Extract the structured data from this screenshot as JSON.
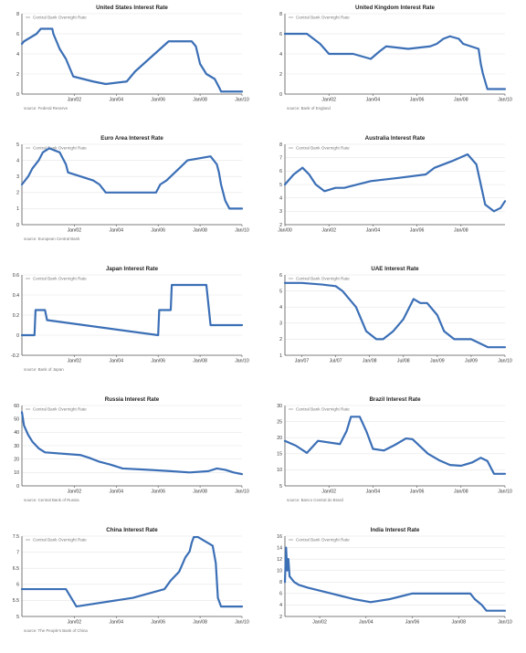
{
  "legend_label": "Central Bank Overnight Rate",
  "line_color": "#3b6fb6",
  "chart_data": [
    {
      "type": "line",
      "title": "United States Interest Rate",
      "source": "source: Federal Reserve",
      "xlim": [
        1999.5,
        2010.0
      ],
      "ylim": [
        0,
        8
      ],
      "yticks": [
        0,
        2,
        4,
        6,
        8
      ],
      "yticklabels": [
        "0",
        "2",
        "4",
        "6",
        "8"
      ],
      "xticks": [
        2002.0,
        2004.0,
        2006.0,
        2008.0,
        2010.0
      ],
      "xticklabels": [
        "Jan/02",
        "Jan/04",
        "Jan/06",
        "Jan/08",
        "Jan/10"
      ],
      "series": [
        {
          "x": [
            1999.5,
            1999.6,
            1999.8,
            2000.0,
            2000.2,
            2000.4,
            2000.95,
            2001.0,
            2001.3,
            2001.6,
            2001.8,
            2001.95,
            2002.9,
            2003.5,
            2004.5,
            2004.9,
            2005.3,
            2005.7,
            2006.1,
            2006.5,
            2007.6,
            2007.8,
            2008.0,
            2008.3,
            2008.7,
            2008.95,
            2009.0,
            2010.0
          ],
          "y": [
            5.0,
            5.25,
            5.5,
            5.75,
            6.0,
            6.5,
            6.5,
            6.0,
            4.5,
            3.5,
            2.5,
            1.75,
            1.25,
            1.0,
            1.25,
            2.25,
            3.0,
            3.75,
            4.5,
            5.25,
            5.25,
            4.75,
            3.0,
            2.0,
            1.5,
            0.5,
            0.25,
            0.25
          ]
        }
      ]
    },
    {
      "type": "line",
      "title": "United Kingdom Interest Rate",
      "source": "source: Bank of England",
      "xlim": [
        2000.0,
        2010.0
      ],
      "ylim": [
        0,
        8
      ],
      "yticks": [
        0,
        2,
        4,
        6,
        8
      ],
      "yticklabels": [
        "0",
        "2",
        "4",
        "6",
        "8"
      ],
      "xticks": [
        2002.0,
        2004.0,
        2006.0,
        2008.0,
        2010.0
      ],
      "xticklabels": [
        "Jan/02",
        "Jan/04",
        "Jan/06",
        "Jan/08",
        "Jan/10"
      ],
      "series": [
        {
          "x": [
            2000.0,
            2001.0,
            2001.3,
            2001.6,
            2001.8,
            2002.0,
            2003.1,
            2003.5,
            2003.9,
            2004.3,
            2004.6,
            2005.6,
            2006.6,
            2006.9,
            2007.2,
            2007.5,
            2007.9,
            2008.1,
            2008.8,
            2008.9,
            2009.0,
            2009.2,
            2010.0
          ],
          "y": [
            6.0,
            6.0,
            5.5,
            5.0,
            4.5,
            4.0,
            4.0,
            3.75,
            3.5,
            4.25,
            4.75,
            4.5,
            4.75,
            5.0,
            5.5,
            5.75,
            5.5,
            5.0,
            4.5,
            3.0,
            2.0,
            0.5,
            0.5
          ]
        }
      ]
    },
    {
      "type": "line",
      "title": "Euro Area Interest Rate",
      "source": "source: European Central Bank",
      "xlim": [
        1999.5,
        2010.0
      ],
      "ylim": [
        0,
        5
      ],
      "yticks": [
        0,
        1,
        2,
        3,
        4,
        5
      ],
      "yticklabels": [
        "0",
        "1",
        "2",
        "3",
        "4",
        "5"
      ],
      "xticks": [
        2002.0,
        2004.0,
        2006.0,
        2008.0,
        2010.0
      ],
      "xticklabels": [
        "Jan/02",
        "Jan/04",
        "Jan/06",
        "Jan/08",
        "Jan/10"
      ],
      "series": [
        {
          "x": [
            1999.5,
            1999.8,
            2000.0,
            2000.3,
            2000.5,
            2000.8,
            2001.3,
            2001.6,
            2001.7,
            2002.9,
            2003.2,
            2003.5,
            2005.9,
            2006.1,
            2006.4,
            2006.6,
            2006.8,
            2007.0,
            2007.4,
            2008.5,
            2008.8,
            2008.9,
            2009.0,
            2009.2,
            2009.4,
            2010.0
          ],
          "y": [
            2.5,
            3.0,
            3.5,
            4.0,
            4.5,
            4.75,
            4.5,
            3.75,
            3.25,
            2.75,
            2.5,
            2.0,
            2.0,
            2.5,
            2.75,
            3.0,
            3.25,
            3.5,
            4.0,
            4.25,
            3.75,
            3.25,
            2.5,
            1.5,
            1.0,
            1.0
          ]
        }
      ]
    },
    {
      "type": "line",
      "title": "Australia Interest Rate",
      "source": "",
      "xlim": [
        2000.0,
        2010.0
      ],
      "ylim": [
        2,
        8
      ],
      "yticks": [
        2,
        3,
        4,
        5,
        6,
        7,
        8
      ],
      "yticklabels": [
        "2",
        "3",
        "4",
        "5",
        "6",
        "7",
        "8"
      ],
      "xticks": [
        2000.0,
        2002.0,
        2004.0,
        2006.0,
        2008.0
      ],
      "xticklabels": [
        "Jan/00",
        "Jan/02",
        "Jan/04",
        "Jan/06",
        "Jan/08"
      ],
      "series": [
        {
          "x": [
            2000.0,
            2000.4,
            2000.8,
            2001.1,
            2001.4,
            2001.8,
            2002.3,
            2002.7,
            2003.9,
            2005.2,
            2006.4,
            2006.8,
            2007.6,
            2008.3,
            2008.7,
            2008.9,
            2009.1,
            2009.5,
            2009.8,
            2010.0
          ],
          "y": [
            5.0,
            5.75,
            6.25,
            5.75,
            5.0,
            4.5,
            4.75,
            4.75,
            5.25,
            5.5,
            5.75,
            6.25,
            6.75,
            7.25,
            6.5,
            5.0,
            3.5,
            3.0,
            3.25,
            3.75
          ]
        }
      ]
    },
    {
      "type": "line",
      "title": "Japan Interest Rate",
      "source": "source: Bank of Japan",
      "xlim": [
        1999.5,
        2010.0
      ],
      "ylim": [
        -0.2,
        0.6
      ],
      "yticks": [
        -0.2,
        0.0,
        0.2,
        0.4,
        0.6
      ],
      "yticklabels": [
        "-0.2",
        "0",
        "0.2",
        "0.4",
        "0.6"
      ],
      "xticks": [
        2002.0,
        2004.0,
        2006.0,
        2008.0,
        2010.0
      ],
      "xticklabels": [
        "Jan/02",
        "Jan/04",
        "Jan/06",
        "Jan/08",
        "Jan/10"
      ],
      "series": [
        {
          "x": [
            1999.5,
            2000.1,
            2000.15,
            2000.6,
            2000.7,
            2006.0,
            2006.05,
            2006.6,
            2006.65,
            2008.3,
            2008.4,
            2008.5,
            2010.0
          ],
          "y": [
            0.0,
            0.0,
            0.25,
            0.25,
            0.15,
            0.0,
            0.25,
            0.25,
            0.5,
            0.5,
            0.3,
            0.1,
            0.1
          ]
        }
      ]
    },
    {
      "type": "line",
      "title": "UAE Interest Rate",
      "source": "",
      "xlim": [
        2006.75,
        2010.0
      ],
      "ylim": [
        1,
        6
      ],
      "yticks": [
        1,
        2,
        3,
        4,
        5,
        6
      ],
      "yticklabels": [
        "1",
        "2",
        "3",
        "4",
        "5",
        "6"
      ],
      "xticks": [
        2007.0,
        2007.5,
        2008.0,
        2008.5,
        2009.0,
        2009.5,
        2010.0
      ],
      "xticklabels": [
        "Jan/07",
        "Jul/07",
        "Jan/08",
        "Jul/08",
        "Jan/09",
        "Jul/09",
        "Jan/10"
      ],
      "series": [
        {
          "x": [
            2006.75,
            2007.0,
            2007.3,
            2007.5,
            2007.6,
            2007.8,
            2007.95,
            2008.1,
            2008.2,
            2008.35,
            2008.5,
            2008.65,
            2008.75,
            2008.85,
            2009.0,
            2009.1,
            2009.25,
            2009.5,
            2009.75,
            2010.0
          ],
          "y": [
            5.5,
            5.5,
            5.4,
            5.3,
            5.0,
            4.0,
            2.5,
            2.0,
            2.0,
            2.5,
            3.25,
            4.5,
            4.25,
            4.25,
            3.5,
            2.5,
            2.0,
            2.0,
            1.5,
            1.5
          ]
        }
      ]
    },
    {
      "type": "line",
      "title": "Russia Interest Rate",
      "source": "source: Central Bank of Russia",
      "xlim": [
        1999.5,
        2010.0
      ],
      "ylim": [
        0,
        60
      ],
      "yticks": [
        0,
        10,
        20,
        30,
        40,
        50,
        60
      ],
      "yticklabels": [
        "0",
        "10",
        "20",
        "30",
        "40",
        "50",
        "60"
      ],
      "xticks": [
        2002.0,
        2004.0,
        2006.0,
        2008.0,
        2010.0
      ],
      "xticklabels": [
        "Jan/02",
        "Jan/04",
        "Jan/06",
        "Jan/08",
        "Jan/10"
      ],
      "series": [
        {
          "x": [
            1999.5,
            1999.6,
            1999.8,
            2000.0,
            2000.3,
            2000.6,
            2002.3,
            2002.7,
            2003.2,
            2003.7,
            2004.3,
            2005.5,
            2006.6,
            2007.5,
            2008.4,
            2008.8,
            2009.2,
            2009.6,
            2010.0
          ],
          "y": [
            55,
            45,
            38,
            33,
            28,
            25,
            23,
            21,
            18,
            16,
            13,
            12,
            11,
            10,
            11,
            13,
            12,
            10,
            8.75
          ]
        }
      ]
    },
    {
      "type": "line",
      "title": "Brazil Interest Rate",
      "source": "source: Banco Central do Brasil",
      "xlim": [
        2000.0,
        2010.0
      ],
      "ylim": [
        5,
        30
      ],
      "yticks": [
        5,
        10,
        15,
        20,
        25,
        30
      ],
      "yticklabels": [
        "5",
        "10",
        "15",
        "20",
        "25",
        "30"
      ],
      "xticks": [
        2002.0,
        2004.0,
        2006.0,
        2008.0,
        2010.0
      ],
      "xticklabels": [
        "Jan/02",
        "Jan/04",
        "Jan/06",
        "Jan/08",
        "Jan/10"
      ],
      "series": [
        {
          "x": [
            2000.0,
            2000.5,
            2001.0,
            2001.5,
            2002.5,
            2002.8,
            2003.0,
            2003.4,
            2003.7,
            2004.0,
            2004.5,
            2005.0,
            2005.5,
            2005.8,
            2006.5,
            2007.0,
            2007.5,
            2008.0,
            2008.5,
            2008.9,
            2009.2,
            2009.5,
            2010.0
          ],
          "y": [
            19,
            17.5,
            15.25,
            19,
            18,
            22,
            26.5,
            26.5,
            22,
            16.5,
            16,
            17.75,
            19.75,
            19.5,
            15,
            13,
            11.5,
            11.25,
            12.25,
            13.75,
            12.75,
            8.75,
            8.75
          ]
        }
      ]
    },
    {
      "type": "line",
      "title": "China Interest Rate",
      "source": "source: The People's Bank of China",
      "xlim": [
        1999.5,
        2010.0
      ],
      "ylim": [
        5,
        7.5
      ],
      "yticks": [
        5.0,
        5.5,
        6.0,
        6.5,
        7.0,
        7.5
      ],
      "yticklabels": [
        "5",
        "5.5",
        "6",
        "6.5",
        "7",
        "7.5"
      ],
      "xticks": [
        2002.0,
        2004.0,
        2006.0,
        2008.0,
        2010.0
      ],
      "xticklabels": [
        "Jan/02",
        "Jan/04",
        "Jan/06",
        "Jan/08",
        "Jan/10"
      ],
      "series": [
        {
          "x": [
            1999.5,
            2001.6,
            2002.1,
            2004.8,
            2006.3,
            2006.6,
            2007.0,
            2007.3,
            2007.5,
            2007.6,
            2007.7,
            2007.9,
            2008.6,
            2008.75,
            2008.85,
            2009.0,
            2010.0
          ],
          "y": [
            5.85,
            5.85,
            5.31,
            5.58,
            5.85,
            6.12,
            6.39,
            6.84,
            7.02,
            7.29,
            7.47,
            7.47,
            7.2,
            6.66,
            5.58,
            5.31,
            5.31
          ]
        }
      ]
    },
    {
      "type": "line",
      "title": "India Interest Rate",
      "source": "",
      "xlim": [
        2000.5,
        2010.0
      ],
      "ylim": [
        2,
        16
      ],
      "yticks": [
        2,
        4,
        6,
        8,
        10,
        12,
        14,
        16
      ],
      "yticklabels": [
        "2",
        "4",
        "6",
        "8",
        "10",
        "12",
        "14",
        "16"
      ],
      "xticks": [
        2002.0,
        2004.0,
        2006.0,
        2008.0,
        2010.0
      ],
      "xticklabels": [
        "Jan/02",
        "Jan/04",
        "Jan/06",
        "Jan/08",
        "Jan/10"
      ],
      "series": [
        {
          "x": [
            2000.5,
            2000.55,
            2000.6,
            2000.65,
            2000.7,
            2000.8,
            2000.9,
            2001.1,
            2001.5,
            2002.0,
            2002.5,
            2003.0,
            2003.5,
            2004.2,
            2005.0,
            2005.5,
            2006.0,
            2006.5,
            2007.0,
            2007.5,
            2008.0,
            2008.5,
            2008.7,
            2009.0,
            2009.2,
            2009.3,
            2010.0
          ],
          "y": [
            8,
            14,
            10,
            12,
            9,
            8.5,
            8,
            7.5,
            7,
            6.5,
            6,
            5.5,
            5.0,
            4.5,
            5,
            5.5,
            6,
            6,
            6,
            6,
            6,
            6,
            5,
            4,
            3,
            3,
            3
          ]
        }
      ]
    }
  ]
}
